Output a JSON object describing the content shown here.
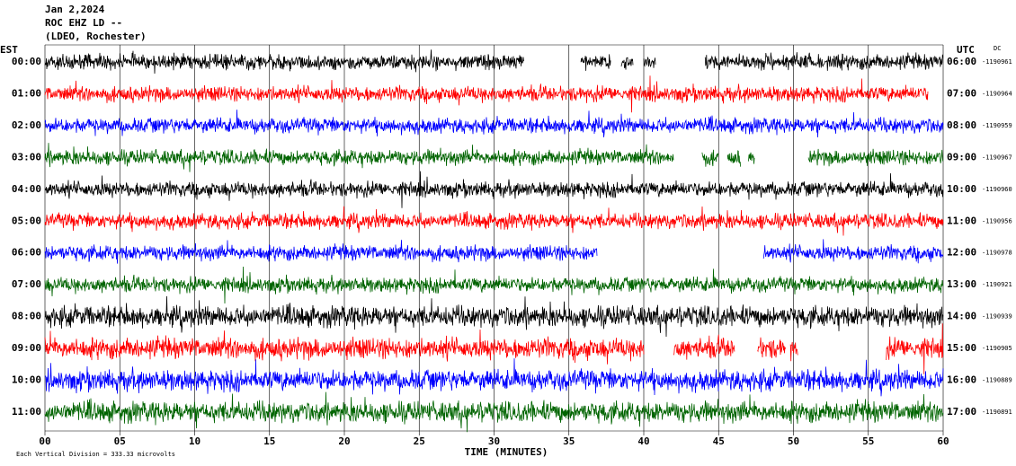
{
  "chart_data": {
    "type": "helicorder",
    "title": "Jan 2,2024",
    "subtitle": [
      "ROC EHZ LD --",
      "(LDEO, Rochester)"
    ],
    "left_label": "EST",
    "right_label": "UTC",
    "corner_label": "DC",
    "x_label": "TIME (MINUTES)",
    "note": "Each Vertical Division =  333.33 microvolts",
    "xlim": [
      0,
      60
    ],
    "xticks": [
      {
        "value": 0,
        "label": "00"
      },
      {
        "value": 5,
        "label": "05"
      },
      10,
      15,
      20,
      25,
      30,
      35,
      40,
      45,
      50,
      55,
      60
    ],
    "grid": true,
    "rows": [
      {
        "est": "00:00",
        "utc": "06:00",
        "count": -1190961,
        "color": "#000000",
        "segments": [
          [
            0,
            32
          ],
          [
            35.8,
            37.8
          ],
          [
            38.5,
            39.3
          ],
          [
            40,
            40.8
          ],
          [
            44.1,
            60
          ]
        ]
      },
      {
        "est": "01:00",
        "utc": "07:00",
        "count": -1190964,
        "color": "#ff0000",
        "segments": [
          [
            0,
            59
          ]
        ]
      },
      {
        "est": "02:00",
        "utc": "08:00",
        "count": -1190959,
        "color": "#0000ff",
        "segments": [
          [
            0,
            60
          ]
        ]
      },
      {
        "est": "03:00",
        "utc": "09:00",
        "count": -1190967,
        "color": "#006400",
        "segments": [
          [
            0,
            42
          ],
          [
            43.9,
            45
          ],
          [
            45.6,
            46.5
          ],
          [
            47,
            47.4
          ],
          [
            51,
            60
          ]
        ]
      },
      {
        "est": "04:00",
        "utc": "10:00",
        "count": -1190960,
        "color": "#000000",
        "segments": [
          [
            0,
            60
          ]
        ]
      },
      {
        "est": "05:00",
        "utc": "11:00",
        "count": -1190956,
        "color": "#ff0000",
        "segments": [
          [
            0,
            60
          ]
        ]
      },
      {
        "est": "06:00",
        "utc": "12:00",
        "count": -1190978,
        "color": "#0000ff",
        "segments": [
          [
            0,
            36.9
          ],
          [
            48,
            60
          ]
        ]
      },
      {
        "est": "07:00",
        "utc": "13:00",
        "count": -1190921,
        "color": "#006400",
        "segments": [
          [
            0,
            60
          ]
        ]
      },
      {
        "est": "08:00",
        "utc": "14:00",
        "count": -1190939,
        "color": "#000000",
        "segments": [
          [
            0,
            60
          ]
        ]
      },
      {
        "est": "09:00",
        "utc": "15:00",
        "count": -1190905,
        "color": "#ff0000",
        "segments": [
          [
            0,
            40
          ],
          [
            42,
            46.1
          ],
          [
            47.6,
            49.5
          ],
          [
            49.8,
            50.3
          ],
          [
            56.2,
            60
          ]
        ]
      },
      {
        "est": "10:00",
        "utc": "16:00",
        "count": -1190889,
        "color": "#0000ff",
        "segments": [
          [
            0,
            60
          ]
        ]
      },
      {
        "est": "11:00",
        "utc": "17:00",
        "count": -1190891,
        "color": "#006400",
        "segments": [
          [
            0,
            60
          ]
        ]
      }
    ]
  }
}
